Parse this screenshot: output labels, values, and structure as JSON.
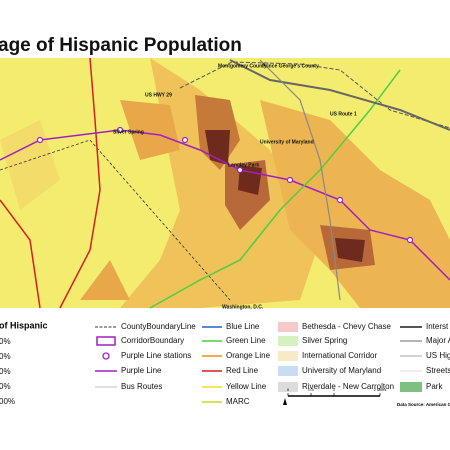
{
  "title": "age of Hispanic Population",
  "map_labels": [
    "Montgomery County",
    "Prince George's County",
    "US HWY 29",
    "Silver Spring",
    "Langley Park",
    "University of Maryland",
    "US Route 1",
    "Washington, D.C."
  ],
  "legend": {
    "title": "of Hispanic",
    "ranges": [
      "0%",
      "0%",
      "0%",
      "0%",
      "00%"
    ],
    "lines": [
      "CountyBoundaryLine",
      "CorridorBoundary",
      "Purple Line stations",
      "Purple Line",
      "Bus Routes"
    ],
    "transit": [
      "Blue Line",
      "Green Line",
      "Orange Line",
      "Red Line",
      "Yellow Line",
      "MARC"
    ],
    "corridors": [
      "Bethesda - Chevy Chase",
      "Silver Spring",
      "International Corridor",
      "University of Maryland",
      "Riverdale - New Carrolton"
    ],
    "roads": [
      "Interst",
      "Major A",
      "US Hig",
      "Streets",
      "Park"
    ]
  },
  "scale": [
    "0",
    "0.5",
    "1",
    "2 Miles"
  ],
  "source": "Data Source: American Com"
}
